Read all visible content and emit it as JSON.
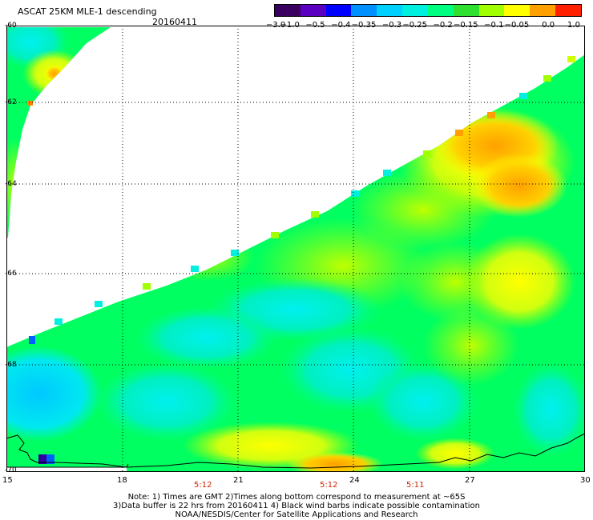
{
  "header": {
    "title": "ASCAT 25KM MLE-1 descending",
    "date": "20160411"
  },
  "colorbar": {
    "colors": [
      "#3a0060",
      "#5a00c0",
      "#0000ff",
      "#0090ff",
      "#00d0ff",
      "#00f0e0",
      "#00ff80",
      "#30e030",
      "#a0ff00",
      "#ffff00",
      "#ffa000",
      "#ff2000"
    ],
    "labels": [
      "−3.0",
      "−1.0",
      "−0.5",
      "−0.4",
      "−0.35",
      "−0.3",
      "−0.25",
      "−0.2",
      "−0.15",
      "−0.1",
      "−0.05",
      "0.0",
      "1.0"
    ]
  },
  "axes": {
    "x_ticks": [
      "15",
      "18",
      "21",
      "24",
      "27",
      "30"
    ],
    "y_ticks": [
      "-60",
      "-62",
      "-64",
      "-66",
      "-68",
      "-70"
    ]
  },
  "times": [
    "5:12",
    "5:12",
    "5:11"
  ],
  "notes": {
    "line1": "Note: 1) Times are GMT 2)Times along bottom correspond to measurement at ~65S",
    "line2": "3)Data buffer is 22 hrs from 20160411 4) Black wind barbs indicate possible contamination",
    "line3": "NOAA/NESDIS/Center for Satellite Applications and Research"
  }
}
